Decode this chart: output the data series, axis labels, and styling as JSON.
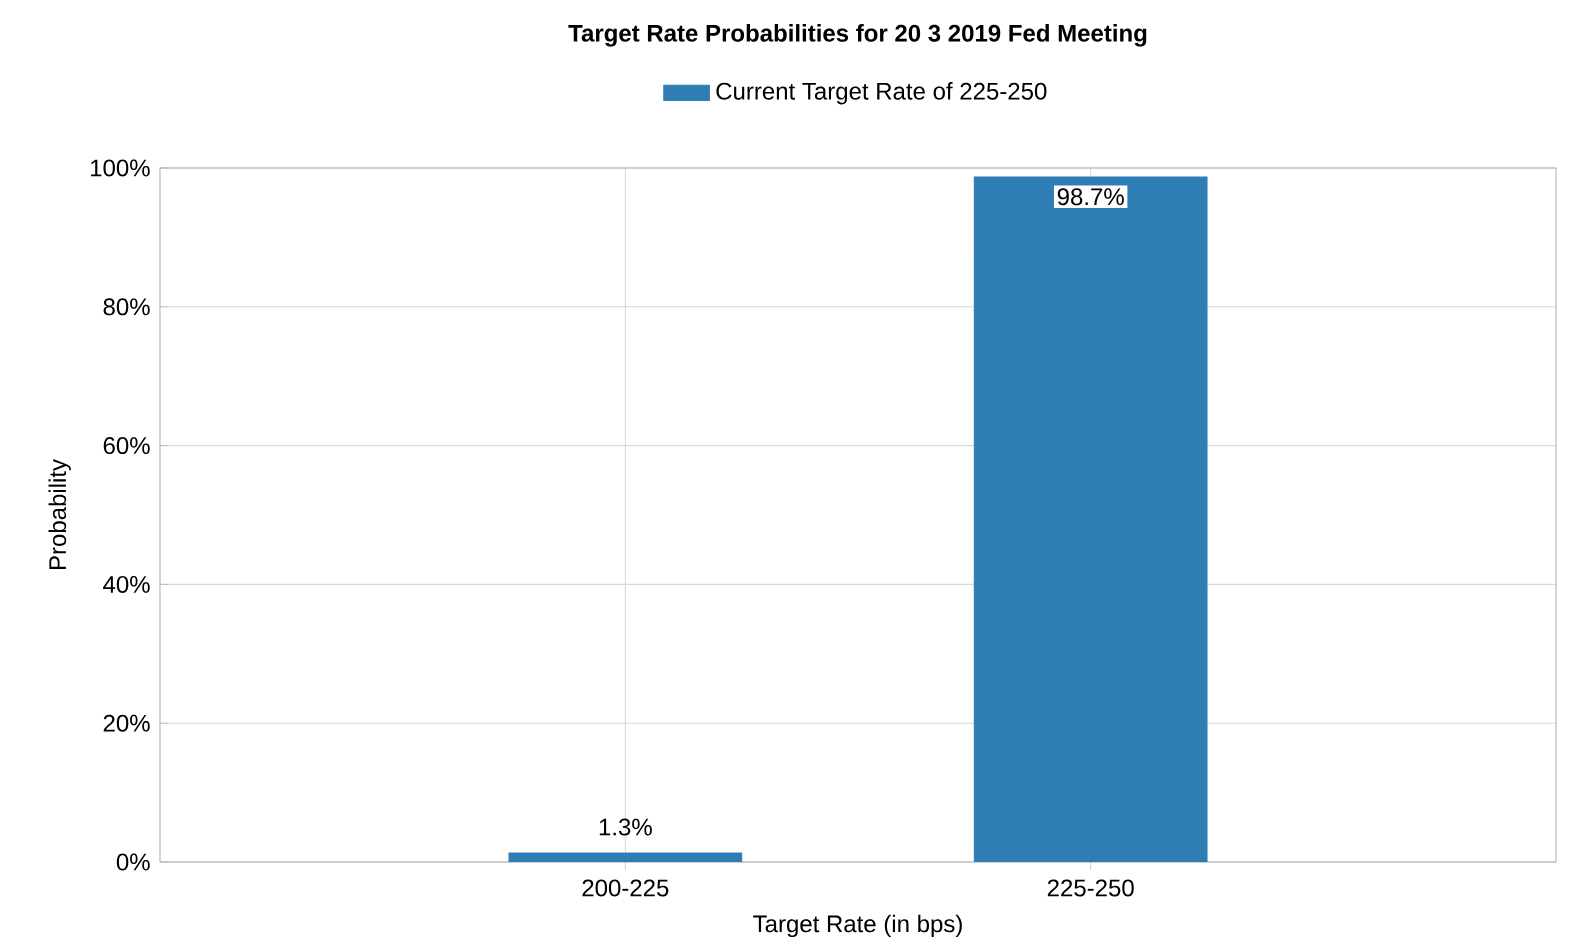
{
  "chart_data": {
    "type": "bar",
    "title": "Target Rate Probabilities for 20 3 2019 Fed Meeting",
    "xlabel": "Target Rate (in bps)",
    "ylabel": "Probability",
    "categories": [
      "200-225",
      "225-250"
    ],
    "series": [
      {
        "name": "Current Target Rate of 225-250",
        "color": "#2e7db5",
        "values": [
          1.3,
          98.7
        ],
        "value_labels": [
          "1.3%",
          "98.7%"
        ]
      }
    ],
    "ylim": [
      0,
      100
    ],
    "yticks": [
      {
        "value": 0,
        "label": "0%"
      },
      {
        "value": 20,
        "label": "20%"
      },
      {
        "value": 40,
        "label": "40%"
      },
      {
        "value": 60,
        "label": "60%"
      },
      {
        "value": 80,
        "label": "80%"
      },
      {
        "value": 100,
        "label": "100%"
      }
    ],
    "grid": true,
    "legend": "top"
  }
}
